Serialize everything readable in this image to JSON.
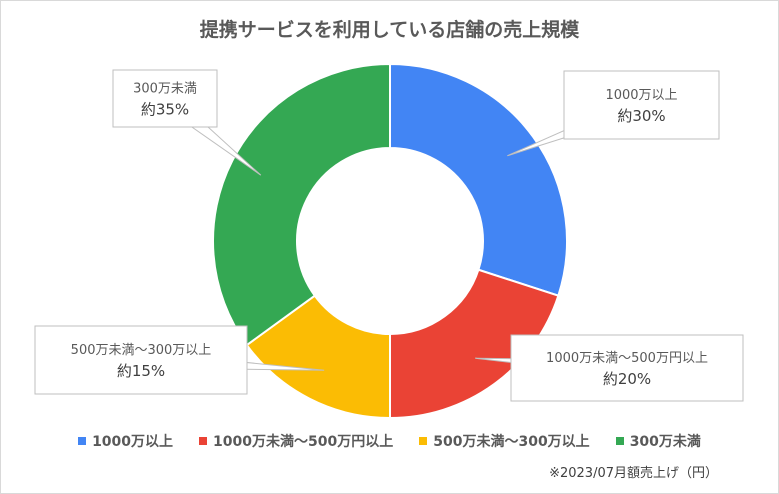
{
  "chart_data": {
    "type": "pie",
    "title": "提携サービスを利用している店舗の売上規模",
    "categories": [
      "1000万以上",
      "1000万未満〜500万円以上",
      "500万未満〜300万以上",
      "300万未満"
    ],
    "values": [
      30,
      20,
      15,
      35
    ],
    "value_labels": [
      "約30%",
      "約20%",
      "約15%",
      "約35%"
    ],
    "colors": [
      "#4285f4",
      "#ea4335",
      "#fbbc04",
      "#34a853"
    ],
    "legend": "bottom",
    "footnote": "※2023/07月額売上げ（円）"
  }
}
